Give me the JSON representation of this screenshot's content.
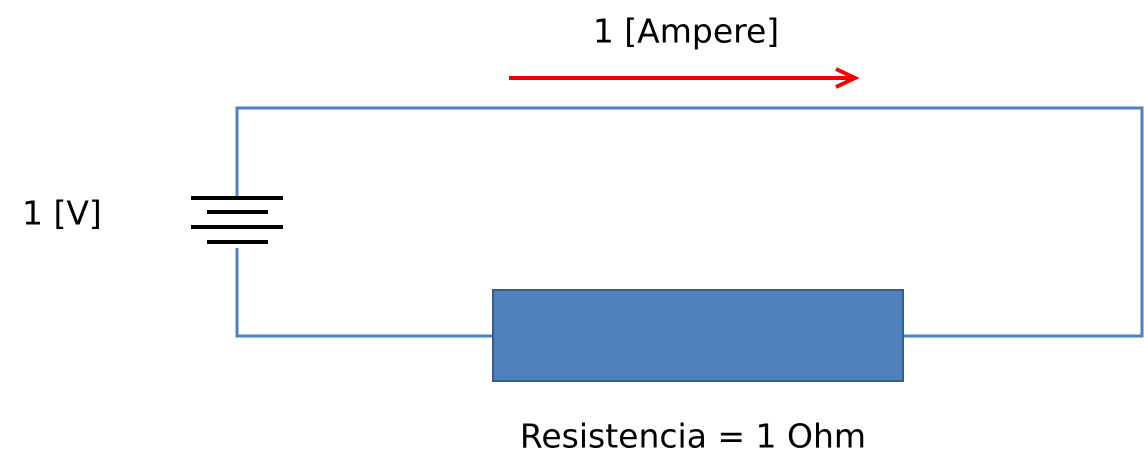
{
  "labels": {
    "current": "1 [Ampere]",
    "voltage": "1 [V]",
    "resistance": "Resistencia = 1 Ohm"
  }
}
